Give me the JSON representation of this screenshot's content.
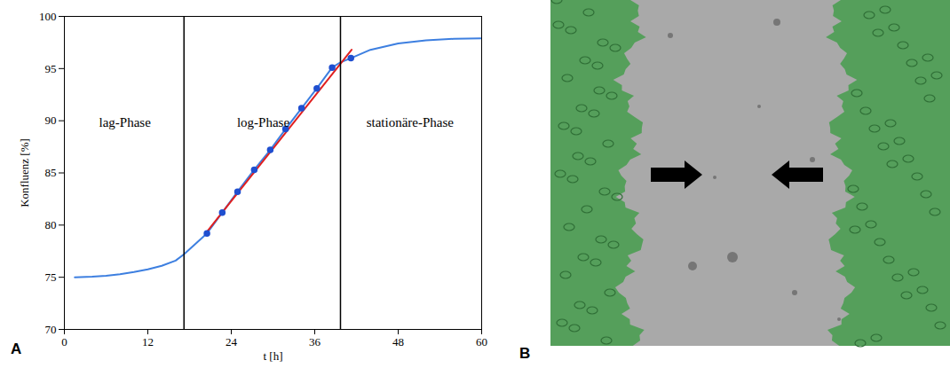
{
  "chart_data": {
    "type": "line",
    "panel_label": "A",
    "xlabel": "t [h]",
    "ylabel": "Konfluenz [%]",
    "xlim": [
      0,
      60
    ],
    "xticks": [
      0,
      12,
      24,
      36,
      48,
      60
    ],
    "ylim": [
      70,
      100
    ],
    "yticks": [
      70,
      75,
      80,
      85,
      90,
      95,
      100
    ],
    "grid": false,
    "series": [
      {
        "type": "line",
        "color": "#3d7fe0",
        "line_style": "solid",
        "x": [
          1.5,
          4,
          6,
          8,
          10,
          12,
          14,
          16,
          17.2,
          20.5,
          22.7,
          24.9,
          27.3,
          29.6,
          31.8,
          34.1,
          36.3,
          38.5,
          39.7,
          41.2,
          44,
          48,
          52,
          56,
          60
        ],
        "values": [
          75.0,
          75.05,
          75.15,
          75.3,
          75.5,
          75.75,
          76.1,
          76.6,
          77.2,
          79.2,
          81.2,
          83.2,
          85.3,
          87.2,
          89.2,
          91.2,
          93.1,
          95.1,
          95.6,
          96.0,
          96.8,
          97.4,
          97.7,
          97.85,
          97.9
        ]
      },
      {
        "type": "line",
        "color": "#e02020",
        "line_style": "solid",
        "x": [
          20.3,
          41.3
        ],
        "values": [
          79.2,
          96.8
        ]
      },
      {
        "type": "scatter",
        "color": "#1f4fd0",
        "marker": "circle",
        "x": [
          20.5,
          22.7,
          24.9,
          27.3,
          29.6,
          31.8,
          34.1,
          36.3,
          38.5,
          41.2
        ],
        "values": [
          79.2,
          81.2,
          83.2,
          85.3,
          87.2,
          89.2,
          91.2,
          93.1,
          95.1,
          96.0
        ]
      }
    ],
    "vlines": [
      17.2,
      39.7
    ],
    "annotations": [
      {
        "text": "lag-Phase",
        "x": 8.7,
        "y": 89.8
      },
      {
        "text": "log-Phase",
        "x": 28.6,
        "y": 89.8
      },
      {
        "text": "stationäre-Phase",
        "x": 49.7,
        "y": 89.8
      }
    ]
  },
  "image": {
    "panel_label": "B"
  }
}
